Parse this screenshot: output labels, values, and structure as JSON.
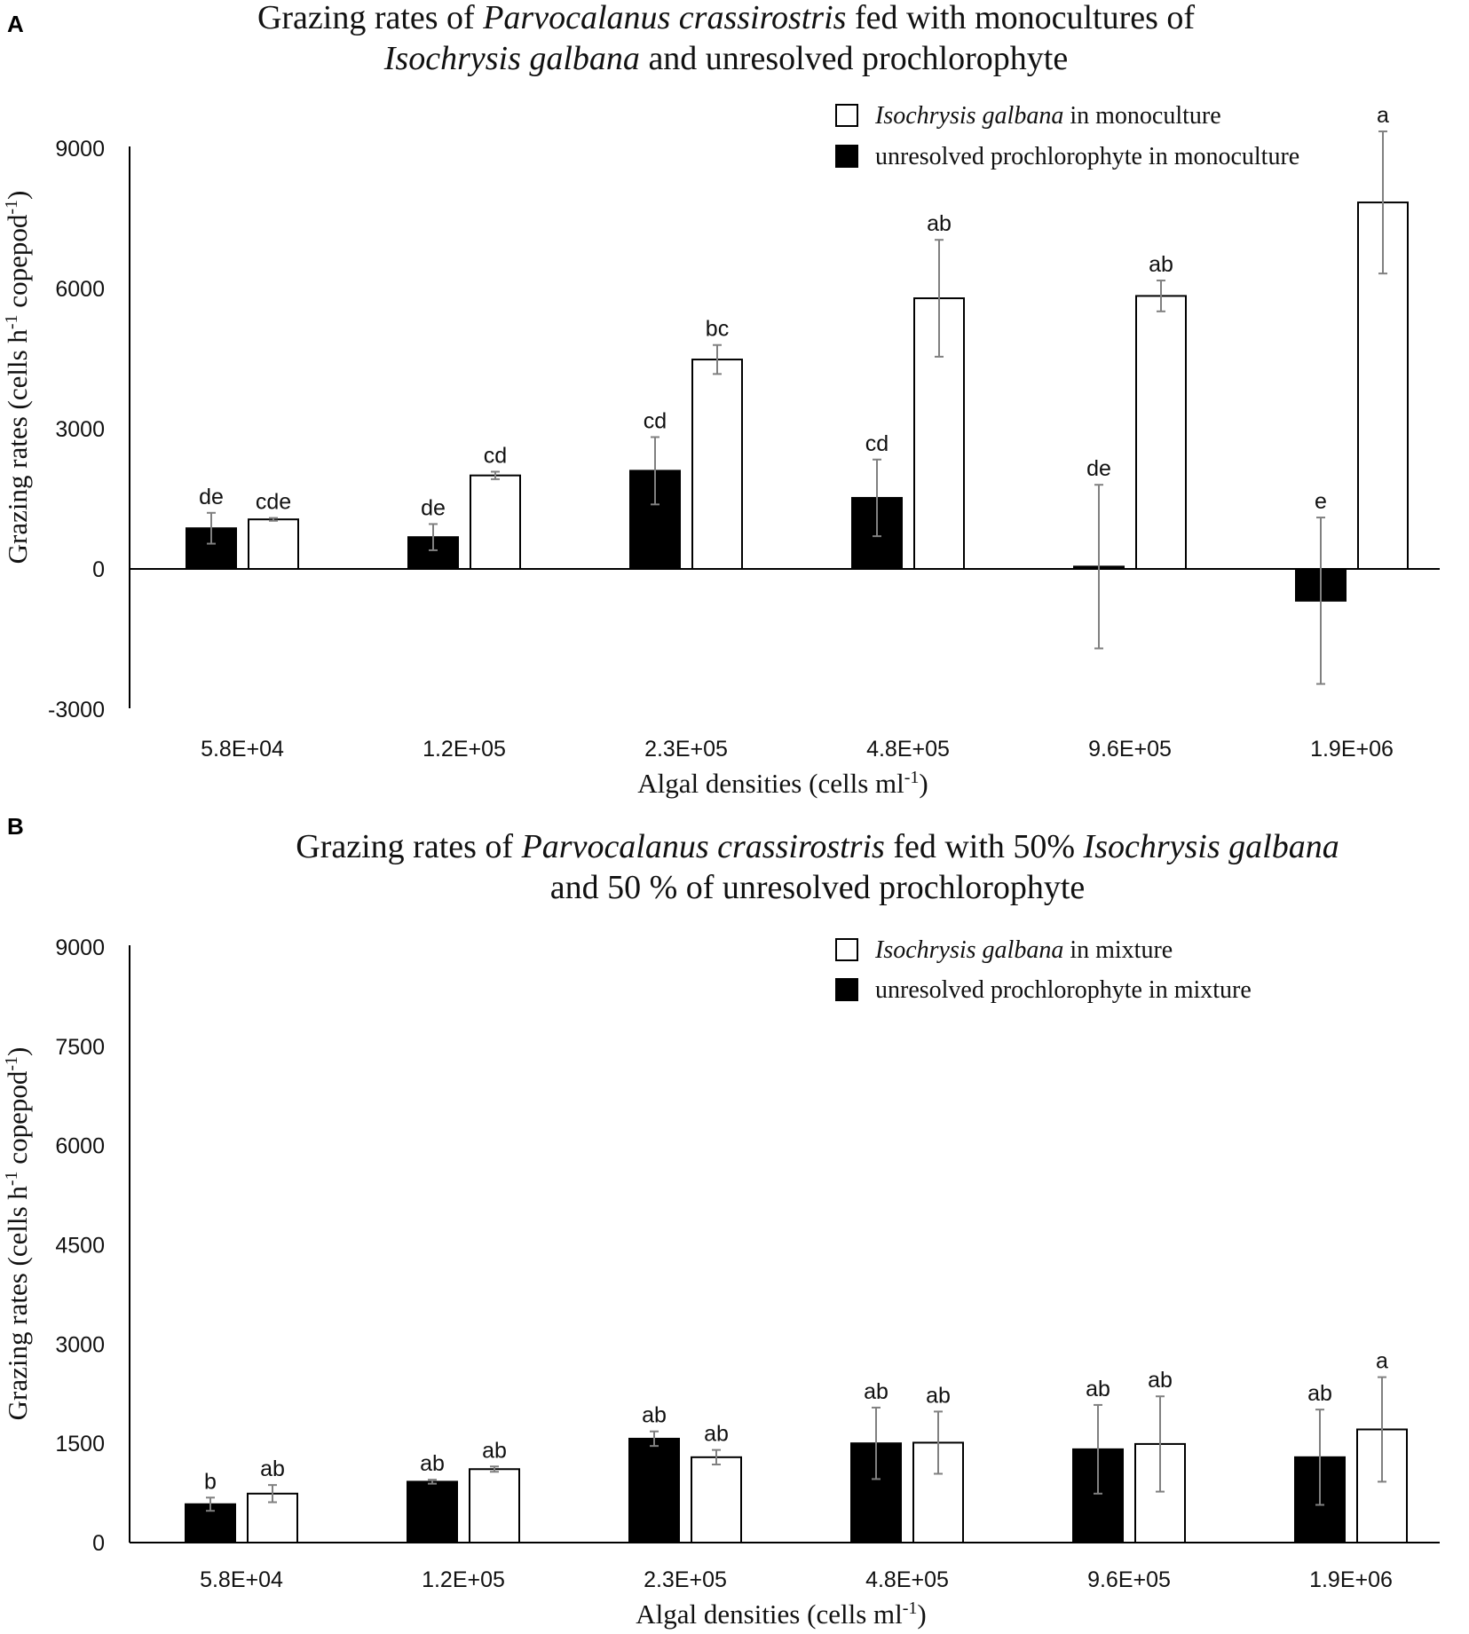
{
  "chart_data": [
    {
      "panel": "A",
      "type": "bar",
      "title_parts": [
        [
          {
            "text": "Grazing rates of ",
            "italic": false
          },
          {
            "text": "Parvocalanus crassirostris",
            "italic": true
          },
          {
            "text": " fed with monocultures of",
            "italic": false
          }
        ],
        [
          {
            "text": "Isochrysis galbana",
            "italic": true
          },
          {
            "text": " and unresolved prochlorophyte",
            "italic": false
          }
        ]
      ],
      "xlabel": "Algal densities (cells ml",
      "xlabel_sup": "-1",
      "xlabel_end": ")",
      "ylabel": "Grazing rates (cells h",
      "ylabel_sup1": "-1",
      "ylabel_mid": " copepod",
      "ylabel_sup2": "-1",
      "ylabel_end": ")",
      "ylim": [
        -3000,
        9000
      ],
      "yticks": [
        -3000,
        0,
        3000,
        6000,
        9000
      ],
      "categories": [
        "5.8E+04",
        "1.2E+05",
        "2.3E+05",
        "4.8E+05",
        "9.6E+05",
        "1.9E+06"
      ],
      "series": [
        {
          "name_parts": [
            {
              "text": "unresolved prochlorophyte in monoculture",
              "italic": false
            }
          ],
          "fill": "#000000",
          "values": [
            870,
            680,
            2100,
            1520,
            50,
            -680
          ],
          "errors": [
            330,
            280,
            720,
            820,
            1750,
            1780
          ],
          "letters": [
            "de",
            "de",
            "cd",
            "cd",
            "de",
            "e"
          ]
        },
        {
          "name_parts": [
            {
              "text": "Isochrysis galbana",
              "italic": true
            },
            {
              "text": " in monoculture",
              "italic": false
            }
          ],
          "fill": "#ffffff",
          "values": [
            1060,
            2000,
            4480,
            5790,
            5840,
            7840
          ],
          "errors": [
            30,
            80,
            310,
            1250,
            330,
            1520
          ],
          "letters": [
            "cde",
            "cd",
            "bc",
            "ab",
            "ab",
            "a"
          ]
        }
      ]
    },
    {
      "panel": "B",
      "type": "bar",
      "title_parts": [
        [
          {
            "text": "Grazing rates of ",
            "italic": false
          },
          {
            "text": "Parvocalanus crassirostris",
            "italic": true
          },
          {
            "text": " fed with 50% ",
            "italic": false
          },
          {
            "text": "Isochrysis galbana",
            "italic": true
          }
        ],
        [
          {
            "text": "and 50 % of unresolved prochlorophyte",
            "italic": false
          }
        ]
      ],
      "xlabel": "Algal densities (cells ml",
      "xlabel_sup": "-1",
      "xlabel_end": ")",
      "ylabel": "Grazing rates (cells h",
      "ylabel_sup1": "-1",
      "ylabel_mid": " copepod",
      "ylabel_sup2": "-1",
      "ylabel_end": ")",
      "ylim": [
        0,
        9000
      ],
      "yticks": [
        0,
        1500,
        3000,
        4500,
        6000,
        7500,
        9000
      ],
      "categories": [
        "5.8E+04",
        "1.2E+05",
        "2.3E+05",
        "4.8E+05",
        "9.6E+05",
        "1.9E+06"
      ],
      "series": [
        {
          "name_parts": [
            {
              "text": "unresolved prochlorophyte in mixture",
              "italic": false
            }
          ],
          "fill": "#000000",
          "values": [
            580,
            920,
            1570,
            1500,
            1410,
            1290
          ],
          "errors": [
            100,
            30,
            110,
            540,
            670,
            720
          ],
          "letters": [
            "b",
            "ab",
            "ab",
            "ab",
            "ab",
            "ab"
          ]
        },
        {
          "name_parts": [
            {
              "text": "Isochrysis galbana",
              "italic": true
            },
            {
              "text": " in mixture",
              "italic": false
            }
          ],
          "fill": "#ffffff",
          "values": [
            740,
            1110,
            1290,
            1510,
            1490,
            1710
          ],
          "errors": [
            130,
            40,
            110,
            470,
            720,
            790
          ],
          "letters": [
            "ab",
            "ab",
            "ab",
            "ab",
            "ab",
            "a"
          ]
        }
      ]
    }
  ]
}
